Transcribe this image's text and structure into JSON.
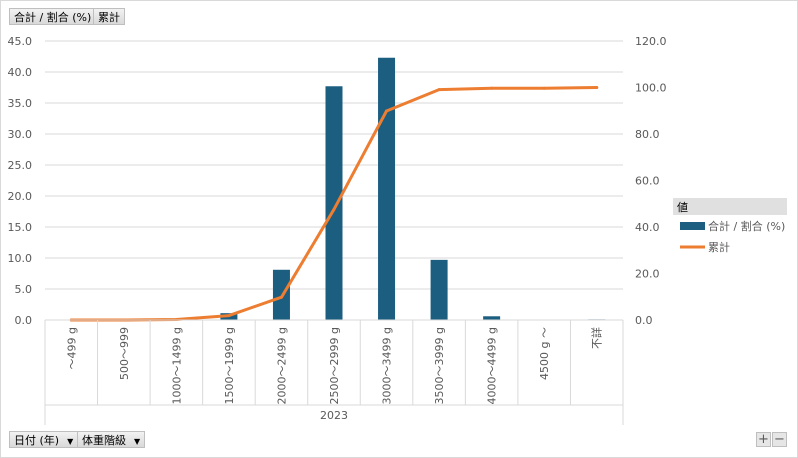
{
  "field_buttons": {
    "values_field": "合計 / 割合 (%)",
    "cumulative_field": "累計",
    "date_field": "日付 (年)",
    "weight_field": "体重階級"
  },
  "legend": {
    "title": "値",
    "items": [
      "合計 / 割合 (%)",
      "累計"
    ]
  },
  "zoom": {
    "plus": "+",
    "minus": "−"
  },
  "colors": {
    "bar": "#1b5e80",
    "line": "#ed7d31",
    "grid": "#d9d9d9",
    "text": "#595959"
  },
  "chart_data": {
    "type": "bar",
    "categories": [
      "～499 g",
      "500～999",
      "1000～1499 g",
      "1500～1999 g",
      "2000～2499 g",
      "2500～2999 g",
      "3000～3499 g",
      "3500～3999 g",
      "4000～4499 g",
      "4500 g ～",
      "不詳"
    ],
    "group_label": "2023",
    "series": [
      {
        "name": "合計 / 割合 (%)",
        "type": "bar",
        "axis": "left",
        "values": [
          0.0,
          0.0,
          0.0,
          1.1,
          8.1,
          37.7,
          42.3,
          9.7,
          0.6,
          0.0,
          0.1
        ]
      },
      {
        "name": "累計",
        "type": "line",
        "axis": "right",
        "values": [
          0.0,
          0.0,
          0.2,
          1.9,
          9.8,
          47.6,
          89.9,
          99.1,
          99.7,
          99.7,
          100.0
        ]
      }
    ],
    "y_left": {
      "min": 0,
      "max": 45,
      "step": 5,
      "ticks": [
        "0.0",
        "5.0",
        "10.0",
        "15.0",
        "20.0",
        "25.0",
        "30.0",
        "35.0",
        "40.0",
        "45.0"
      ]
    },
    "y_right": {
      "min": 0,
      "max": 120,
      "step": 20,
      "ticks": [
        "0.0",
        "20.0",
        "40.0",
        "60.0",
        "80.0",
        "100.0",
        "120.0"
      ]
    },
    "grid": true,
    "legend_position": "right"
  }
}
